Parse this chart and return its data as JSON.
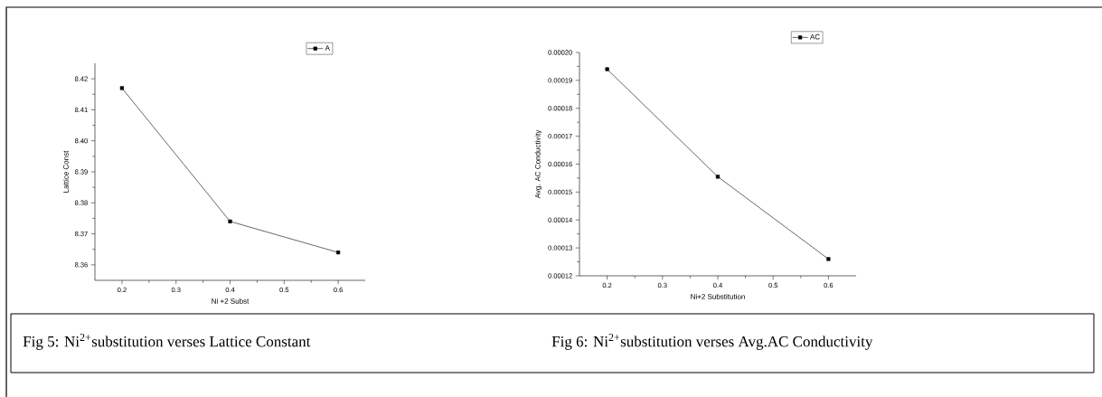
{
  "chart_data": [
    {
      "type": "line",
      "xlabel": "Ni +2 Subst",
      "ylabel": "Lattice Const",
      "x": [
        0.2,
        0.4,
        0.6
      ],
      "series": [
        {
          "name": "A",
          "color": "#000000",
          "values": [
            8.417,
            8.374,
            8.364
          ]
        }
      ],
      "xlim": [
        0.15,
        0.65
      ],
      "xticks": [
        0.2,
        0.3,
        0.4,
        0.5,
        0.6
      ],
      "ylim": [
        8.355,
        8.425
      ],
      "yticks": [
        {
          "value": 8.36,
          "label": "8.36"
        },
        {
          "value": 8.37,
          "label": "8.37"
        },
        {
          "value": 8.38,
          "label": "8.38"
        },
        {
          "value": 8.39,
          "label": "8.39"
        },
        {
          "value": 8.4,
          "label": "8.40"
        },
        {
          "value": 8.41,
          "label": "8.41"
        },
        {
          "value": 8.42,
          "label": "8.42"
        }
      ],
      "legend": "top right",
      "marker": "square",
      "line_style": "solid",
      "annotations": [
        "Fig 5: Ni$^{2+}$substitution verses Lattice Constant"
      ]
    },
    {
      "type": "line",
      "xlabel": "Ni+2 Substitution",
      "ylabel": "Avg. AC Conductivity",
      "x": [
        0.2,
        0.4,
        0.6
      ],
      "series": [
        {
          "name": "AC",
          "color": "#000000",
          "values": [
            0.000194,
            0.0001555,
            0.000126
          ]
        }
      ],
      "xlim": [
        0.15,
        0.65
      ],
      "xticks": [
        0.2,
        0.3,
        0.4,
        0.5,
        0.6
      ],
      "ylim": [
        0.00012,
        0.0002
      ],
      "yticks": [
        {
          "value": 0.00012,
          "label": "0.00012"
        },
        {
          "value": 0.00013,
          "label": "0.00013"
        },
        {
          "value": 0.00014,
          "label": "0.00014"
        },
        {
          "value": 0.00015,
          "label": "0.00015"
        },
        {
          "value": 0.00016,
          "label": "0.00016"
        },
        {
          "value": 0.00017,
          "label": "0.00017"
        },
        {
          "value": 0.00018,
          "label": "0.00018"
        },
        {
          "value": 0.00019,
          "label": "0.00019"
        },
        {
          "value": 0.0002,
          "label": "0.00020"
        }
      ],
      "legend": "top right",
      "marker": "square",
      "line_style": "solid",
      "annotations": [
        "Fig 6: Ni$^{2+}$substitution verses Avg.AC Conductivity"
      ]
    }
  ]
}
